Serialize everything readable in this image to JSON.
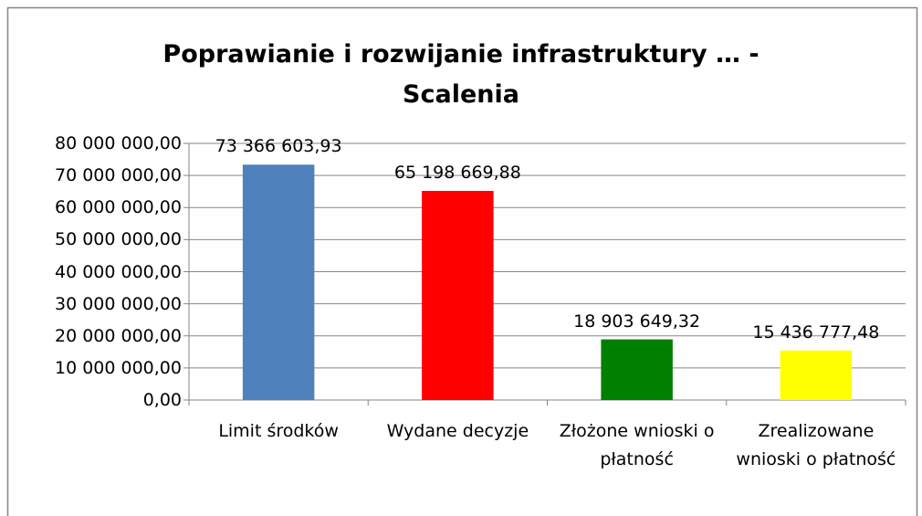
{
  "chart_data": {
    "type": "bar",
    "title": "Poprawianie i rozwijanie infrastruktury … - Scalenia",
    "categories": [
      "Limit środków",
      "Wydane decyzje",
      "Złożone wnioski o płatność",
      "Zrealizowane wnioski o płatność"
    ],
    "values": [
      73366603.93,
      65198669.88,
      18903649.32,
      15436777.48
    ],
    "value_labels": [
      "73 366 603,93",
      "65 198 669,88",
      "18 903 649,32",
      "15 436 777,48"
    ],
    "colors": [
      "#4f81bd",
      "#ff0000",
      "#008000",
      "#ffff00"
    ],
    "ylim": [
      0,
      80000000
    ],
    "yticks": [
      {
        "value": 0,
        "label": "0,00"
      },
      {
        "value": 10000000,
        "label": "10 000 000,00"
      },
      {
        "value": 20000000,
        "label": "20 000 000,00"
      },
      {
        "value": 30000000,
        "label": "30 000 000,00"
      },
      {
        "value": 40000000,
        "label": "40 000 000,00"
      },
      {
        "value": 50000000,
        "label": "50 000 000,00"
      },
      {
        "value": 60000000,
        "label": "60 000 000,00"
      },
      {
        "value": 70000000,
        "label": "70 000 000,00"
      },
      {
        "value": 80000000,
        "label": "80 000 000,00"
      }
    ],
    "grid": true
  }
}
